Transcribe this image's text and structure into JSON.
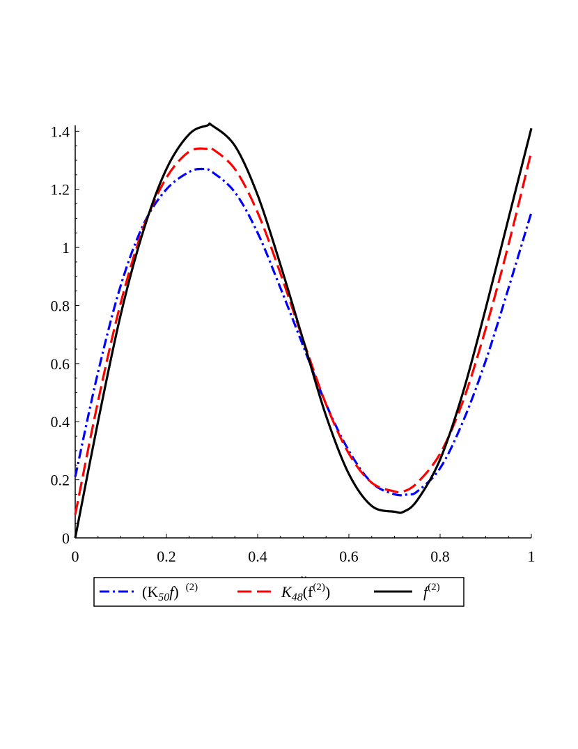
{
  "chart_data": {
    "type": "line",
    "title": "",
    "xlabel": "x",
    "ylabel": "",
    "xlim": [
      0,
      1
    ],
    "ylim": [
      0,
      1.42
    ],
    "xticks": [
      "0",
      "0.2",
      "0.4",
      "0.6",
      "0.8",
      "1"
    ],
    "yticks": [
      "0",
      "0.2",
      "0.4",
      "0.6",
      "0.8",
      "1",
      "1.2",
      "1.4"
    ],
    "grid": false,
    "legend_position": "bottom",
    "series": [
      {
        "name": "(K50f) (2)",
        "color": "#0000ff",
        "style": "dash-dot",
        "x": [
          0,
          0.05,
          0.1,
          0.15,
          0.2,
          0.25,
          0.28,
          0.3,
          0.35,
          0.4,
          0.45,
          0.5,
          0.55,
          0.6,
          0.65,
          0.7,
          0.73,
          0.75,
          0.8,
          0.85,
          0.9,
          0.95,
          1
        ],
        "y": [
          0.21,
          0.57,
          0.87,
          1.08,
          1.2,
          1.26,
          1.27,
          1.26,
          1.19,
          1.05,
          0.86,
          0.66,
          0.46,
          0.3,
          0.19,
          0.15,
          0.15,
          0.16,
          0.24,
          0.4,
          0.61,
          0.86,
          1.12
        ]
      },
      {
        "name": "K48(f(2))",
        "color": "#ff0000",
        "style": "dash",
        "x": [
          0,
          0.05,
          0.1,
          0.15,
          0.2,
          0.25,
          0.29,
          0.3,
          0.35,
          0.4,
          0.45,
          0.5,
          0.55,
          0.6,
          0.65,
          0.7,
          0.72,
          0.75,
          0.8,
          0.85,
          0.9,
          0.95,
          1
        ],
        "y": [
          0.08,
          0.47,
          0.81,
          1.07,
          1.24,
          1.33,
          1.34,
          1.34,
          1.27,
          1.12,
          0.91,
          0.68,
          0.46,
          0.29,
          0.19,
          0.16,
          0.16,
          0.19,
          0.29,
          0.47,
          0.72,
          1.01,
          1.33
        ]
      },
      {
        "name": "f(2)",
        "color": "#000000",
        "style": "solid",
        "x": [
          0,
          0.05,
          0.1,
          0.15,
          0.2,
          0.25,
          0.29,
          0.3,
          0.35,
          0.4,
          0.45,
          0.5,
          0.55,
          0.6,
          0.65,
          0.7,
          0.72,
          0.75,
          0.8,
          0.85,
          0.9,
          0.95,
          1
        ],
        "y": [
          0,
          0.4,
          0.77,
          1.06,
          1.27,
          1.39,
          1.42,
          1.42,
          1.35,
          1.18,
          0.94,
          0.68,
          0.42,
          0.22,
          0.11,
          0.09,
          0.09,
          0.13,
          0.27,
          0.5,
          0.79,
          1.1,
          1.41
        ]
      }
    ]
  },
  "legend": {
    "items": [
      {
        "label_main": "(K",
        "label_sub": "50",
        "label_mid": "f",
        "label_close": ")",
        "label_sup": "(2)"
      },
      {
        "label_main": "K",
        "label_sub": "48",
        "label_mid": "(f",
        "label_sup": "(2)",
        "label_close": ")"
      },
      {
        "label_main": "f",
        "label_sup": "(2)"
      }
    ]
  }
}
